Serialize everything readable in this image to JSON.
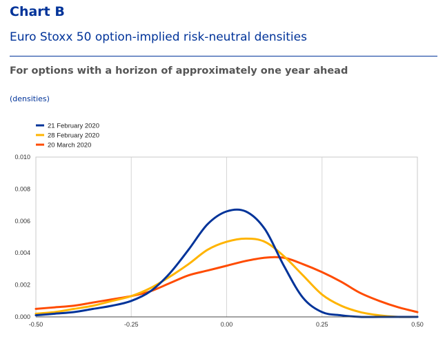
{
  "header": {
    "label": "Chart B",
    "title": "Euro Stoxx 50 option-implied risk-neutral densities",
    "subtitle": "For options with a horizon of approximately one year ahead",
    "unit": "(densities)"
  },
  "chart_data": {
    "type": "line",
    "title": "Euro Stoxx 50 option-implied risk-neutral densities",
    "subtitle": "For options with a horizon of approximately one year ahead",
    "ylabel": "(densities)",
    "xlim": [
      -0.5,
      0.5
    ],
    "ylim": [
      0,
      0.01
    ],
    "x_ticks": [
      "-0.50",
      "-0.25",
      "0.00",
      "0.25",
      "0.50"
    ],
    "y_ticks": [
      "0.000",
      "0.002",
      "0.004",
      "0.006",
      "0.008",
      "0.010"
    ],
    "grid": "vertical",
    "legend": "top-left",
    "x": [
      -0.5,
      -0.45,
      -0.4,
      -0.35,
      -0.3,
      -0.25,
      -0.2,
      -0.15,
      -0.1,
      -0.05,
      0.0,
      0.05,
      0.1,
      0.15,
      0.2,
      0.25,
      0.3,
      0.35,
      0.4,
      0.45,
      0.5
    ],
    "series": [
      {
        "name": "21 February 2020",
        "color": "#003399",
        "values": [
          0.0001,
          0.0002,
          0.0003,
          0.0005,
          0.0007,
          0.001,
          0.0016,
          0.0027,
          0.0042,
          0.0058,
          0.0066,
          0.0066,
          0.0055,
          0.0032,
          0.0012,
          0.0003,
          0.0001,
          0.0,
          0.0,
          0.0,
          0.0
        ]
      },
      {
        "name": "28 February 2020",
        "color": "#FFB400",
        "values": [
          0.0002,
          0.0003,
          0.0005,
          0.0007,
          0.001,
          0.0013,
          0.0018,
          0.0025,
          0.0033,
          0.0042,
          0.0047,
          0.0049,
          0.0047,
          0.0038,
          0.0026,
          0.0014,
          0.0007,
          0.0003,
          0.0001,
          0.0,
          0.0
        ]
      },
      {
        "name": "20 March 2020",
        "color": "#FF4B00",
        "values": [
          0.0005,
          0.0006,
          0.0007,
          0.0009,
          0.0011,
          0.0013,
          0.0016,
          0.0021,
          0.0026,
          0.0029,
          0.0032,
          0.0035,
          0.0037,
          0.0037,
          0.0033,
          0.0028,
          0.0022,
          0.0015,
          0.001,
          0.0006,
          0.0003
        ]
      }
    ]
  }
}
